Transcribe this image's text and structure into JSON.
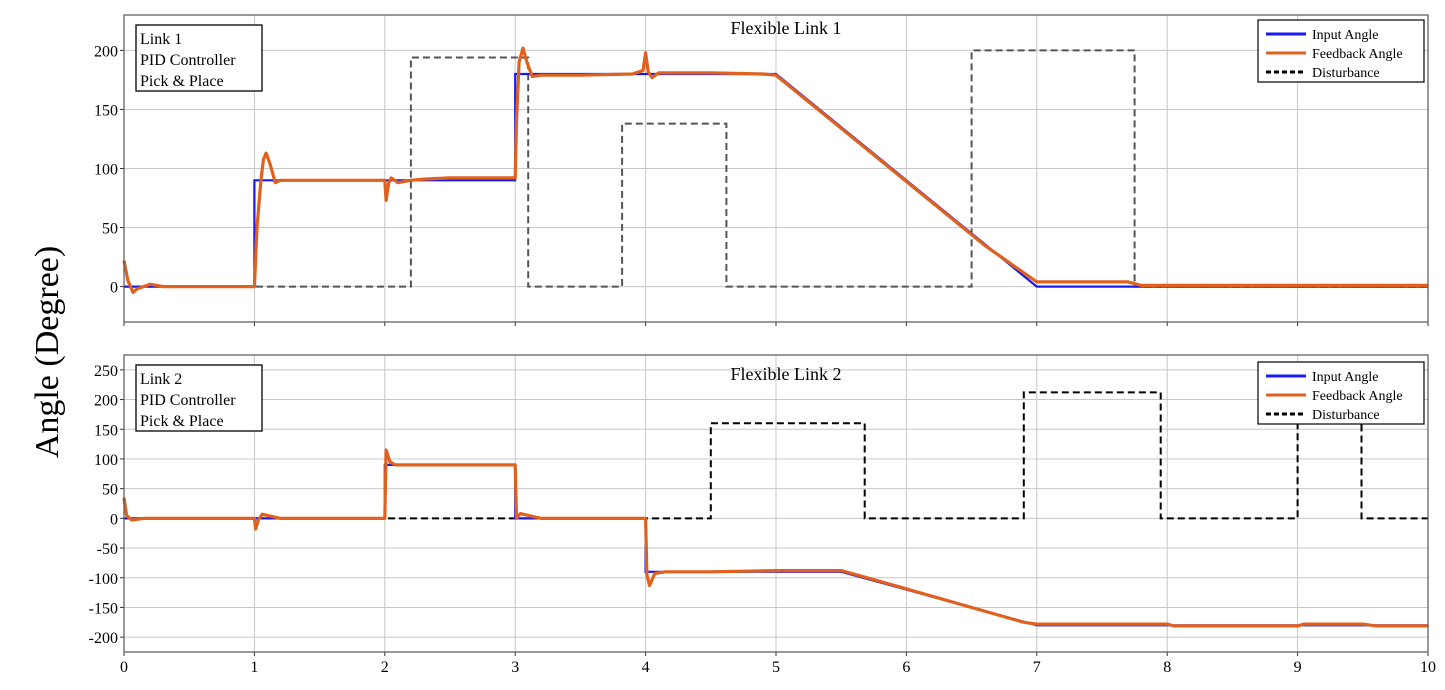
{
  "ylabel": "Angle (Degree)",
  "colors": {
    "input": "#1a1aee",
    "feedback": "#e0601e",
    "disturbance1": "#555555",
    "disturbance2": "#000000"
  },
  "chart_data": [
    {
      "type": "line",
      "title": "Flexible Link 1",
      "annotation": [
        "Link 1",
        "PID Controller",
        "Pick & Place"
      ],
      "xlim": [
        0,
        10
      ],
      "ylim": [
        -30,
        230
      ],
      "xticks": [
        0,
        1,
        2,
        3,
        4,
        5,
        6,
        7,
        8,
        9,
        10
      ],
      "yticks": [
        0,
        50,
        100,
        150,
        200
      ],
      "grid": true,
      "legend_position": "top-right",
      "series": [
        {
          "name": "Input Angle",
          "style": "solid",
          "points": [
            [
              0,
              0
            ],
            [
              1,
              0
            ],
            [
              1,
              90
            ],
            [
              3,
              90
            ],
            [
              3,
              180
            ],
            [
              5,
              180
            ],
            [
              7,
              0
            ],
            [
              10,
              0
            ]
          ]
        },
        {
          "name": "Feedback Angle",
          "style": "solid",
          "points": [
            [
              0,
              22
            ],
            [
              0.03,
              5
            ],
            [
              0.07,
              -5
            ],
            [
              0.1,
              -2
            ],
            [
              0.15,
              0
            ],
            [
              0.2,
              2
            ],
            [
              0.3,
              0
            ],
            [
              1,
              0
            ],
            [
              1.02,
              50
            ],
            [
              1.05,
              90
            ],
            [
              1.07,
              108
            ],
            [
              1.09,
              113
            ],
            [
              1.12,
              104
            ],
            [
              1.16,
              88
            ],
            [
              1.2,
              90
            ],
            [
              1.3,
              90
            ],
            [
              2,
              90
            ],
            [
              2.01,
              73
            ],
            [
              2.03,
              88
            ],
            [
              2.05,
              92
            ],
            [
              2.1,
              88
            ],
            [
              2.2,
              90
            ],
            [
              2.3,
              91
            ],
            [
              2.5,
              92
            ],
            [
              3,
              92
            ],
            [
              3.01,
              140
            ],
            [
              3.03,
              190
            ],
            [
              3.06,
              202
            ],
            [
              3.09,
              190
            ],
            [
              3.13,
              178
            ],
            [
              3.2,
              179
            ],
            [
              3.5,
              179
            ],
            [
              3.9,
              180
            ],
            [
              3.98,
              183
            ],
            [
              4,
              198
            ],
            [
              4.02,
              182
            ],
            [
              4.05,
              177
            ],
            [
              4.1,
              181
            ],
            [
              4.5,
              181
            ],
            [
              4.9,
              180
            ],
            [
              5,
              179
            ],
            [
              6.5,
              44
            ],
            [
              6.6,
              35
            ],
            [
              7,
              4
            ],
            [
              7.7,
              4
            ],
            [
              7.8,
              1
            ],
            [
              10,
              1
            ]
          ]
        },
        {
          "name": "Disturbance",
          "style": "dashed",
          "points": [
            [
              0,
              0
            ],
            [
              2.2,
              0
            ],
            [
              2.2,
              194
            ],
            [
              3.1,
              194
            ],
            [
              3.1,
              0
            ],
            [
              3.82,
              0
            ],
            [
              3.82,
              138
            ],
            [
              4.62,
              138
            ],
            [
              4.62,
              0
            ],
            [
              6.5,
              0
            ],
            [
              6.5,
              200
            ],
            [
              7.75,
              200
            ],
            [
              7.75,
              0
            ],
            [
              10,
              0
            ]
          ]
        }
      ]
    },
    {
      "type": "line",
      "title": "Flexible Link 2",
      "annotation": [
        "Link 2",
        "PID Controller",
        "Pick & Place"
      ],
      "xlim": [
        0,
        10
      ],
      "ylim": [
        -225,
        275
      ],
      "xticks": [
        0,
        1,
        2,
        3,
        4,
        5,
        6,
        7,
        8,
        9,
        10
      ],
      "yticks": [
        250,
        200,
        150,
        100,
        50,
        0,
        -50,
        -100,
        -150,
        -200
      ],
      "grid": true,
      "legend_position": "top-right",
      "series": [
        {
          "name": "Input Angle",
          "style": "solid",
          "points": [
            [
              0,
              0
            ],
            [
              2,
              0
            ],
            [
              2,
              90
            ],
            [
              3,
              90
            ],
            [
              3,
              0
            ],
            [
              4,
              0
            ],
            [
              4,
              -90
            ],
            [
              5.5,
              -90
            ],
            [
              7,
              -180
            ],
            [
              10,
              -180
            ]
          ]
        },
        {
          "name": "Feedback Angle",
          "style": "solid",
          "points": [
            [
              0,
              35
            ],
            [
              0.02,
              5
            ],
            [
              0.06,
              -3
            ],
            [
              0.15,
              0
            ],
            [
              1,
              0
            ],
            [
              1.01,
              -18
            ],
            [
              1.03,
              -3
            ],
            [
              1.06,
              7
            ],
            [
              1.1,
              5
            ],
            [
              1.2,
              0
            ],
            [
              2,
              0
            ],
            [
              2.01,
              115
            ],
            [
              2.04,
              95
            ],
            [
              2.08,
              90
            ],
            [
              3,
              90
            ],
            [
              3.01,
              0
            ],
            [
              3.04,
              8
            ],
            [
              3.1,
              5
            ],
            [
              3.2,
              0
            ],
            [
              4,
              0
            ],
            [
              4.01,
              -95
            ],
            [
              4.03,
              -113
            ],
            [
              4.07,
              -93
            ],
            [
              4.15,
              -90
            ],
            [
              4.5,
              -90
            ],
            [
              5,
              -88
            ],
            [
              5.5,
              -88
            ],
            [
              5.7,
              -100
            ],
            [
              6.9,
              -175
            ],
            [
              7,
              -178
            ],
            [
              8,
              -178
            ],
            [
              8.05,
              -181
            ],
            [
              9,
              -181
            ],
            [
              9.05,
              -178
            ],
            [
              9.5,
              -178
            ],
            [
              9.6,
              -181
            ],
            [
              10,
              -181
            ]
          ]
        },
        {
          "name": "Disturbance",
          "style": "dashed",
          "points": [
            [
              0,
              0
            ],
            [
              4.5,
              0
            ],
            [
              4.5,
              160
            ],
            [
              5.68,
              160
            ],
            [
              5.68,
              0
            ],
            [
              6.9,
              0
            ],
            [
              6.9,
              212
            ],
            [
              7.95,
              212
            ],
            [
              7.95,
              0
            ],
            [
              9,
              0
            ],
            [
              9,
              165
            ],
            [
              9.49,
              165
            ],
            [
              9.49,
              0
            ],
            [
              10,
              0
            ]
          ]
        }
      ]
    }
  ]
}
